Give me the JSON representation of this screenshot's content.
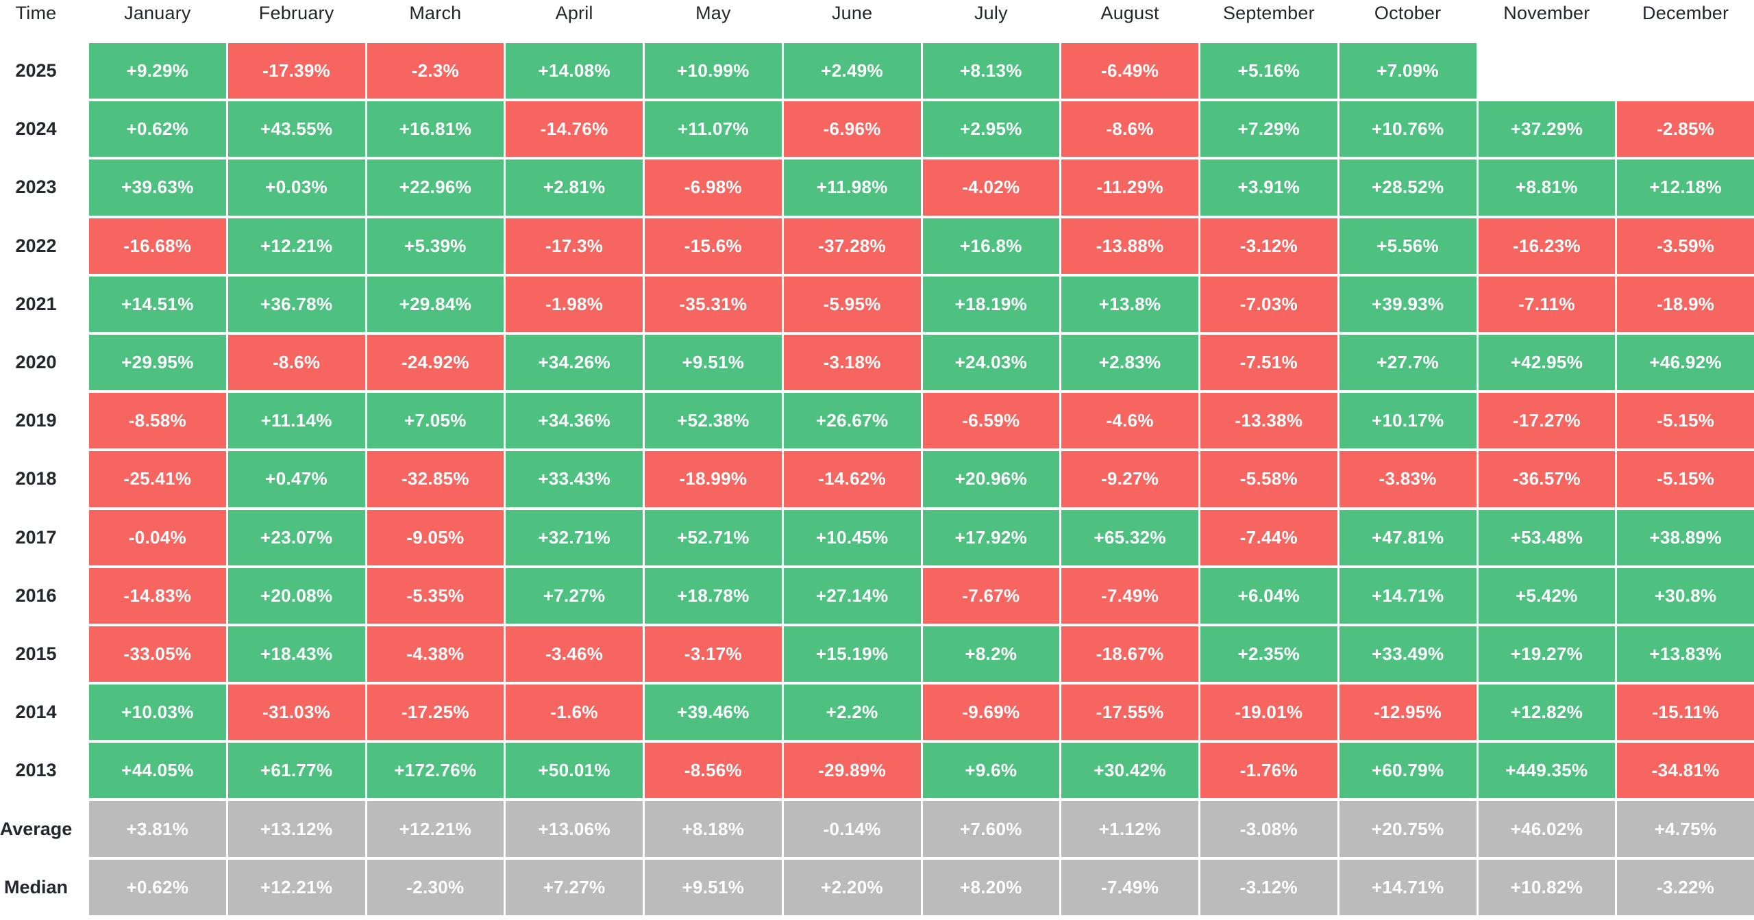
{
  "colors": {
    "positive": "#4EC181",
    "negative": "#F6655F",
    "summary": "#BBBBBB",
    "cell_text": "#FFFFFF",
    "header_text": "#23262C",
    "background": "#FFFFFF"
  },
  "table": {
    "corner_label": "Time",
    "months": [
      "January",
      "February",
      "March",
      "April",
      "May",
      "June",
      "July",
      "August",
      "September",
      "October",
      "November",
      "December"
    ],
    "rows": [
      {
        "label": "2025",
        "kind": "year",
        "values": [
          "+9.29%",
          "-17.39%",
          "-2.3%",
          "+14.08%",
          "+10.99%",
          "+2.49%",
          "+8.13%",
          "-6.49%",
          "+5.16%",
          "+7.09%",
          "",
          ""
        ]
      },
      {
        "label": "2024",
        "kind": "year",
        "values": [
          "+0.62%",
          "+43.55%",
          "+16.81%",
          "-14.76%",
          "+11.07%",
          "-6.96%",
          "+2.95%",
          "-8.6%",
          "+7.29%",
          "+10.76%",
          "+37.29%",
          "-2.85%"
        ]
      },
      {
        "label": "2023",
        "kind": "year",
        "values": [
          "+39.63%",
          "+0.03%",
          "+22.96%",
          "+2.81%",
          "-6.98%",
          "+11.98%",
          "-4.02%",
          "-11.29%",
          "+3.91%",
          "+28.52%",
          "+8.81%",
          "+12.18%"
        ]
      },
      {
        "label": "2022",
        "kind": "year",
        "values": [
          "-16.68%",
          "+12.21%",
          "+5.39%",
          "-17.3%",
          "-15.6%",
          "-37.28%",
          "+16.8%",
          "-13.88%",
          "-3.12%",
          "+5.56%",
          "-16.23%",
          "-3.59%"
        ]
      },
      {
        "label": "2021",
        "kind": "year",
        "values": [
          "+14.51%",
          "+36.78%",
          "+29.84%",
          "-1.98%",
          "-35.31%",
          "-5.95%",
          "+18.19%",
          "+13.8%",
          "-7.03%",
          "+39.93%",
          "-7.11%",
          "-18.9%"
        ]
      },
      {
        "label": "2020",
        "kind": "year",
        "values": [
          "+29.95%",
          "-8.6%",
          "-24.92%",
          "+34.26%",
          "+9.51%",
          "-3.18%",
          "+24.03%",
          "+2.83%",
          "-7.51%",
          "+27.7%",
          "+42.95%",
          "+46.92%"
        ]
      },
      {
        "label": "2019",
        "kind": "year",
        "values": [
          "-8.58%",
          "+11.14%",
          "+7.05%",
          "+34.36%",
          "+52.38%",
          "+26.67%",
          "-6.59%",
          "-4.6%",
          "-13.38%",
          "+10.17%",
          "-17.27%",
          "-5.15%"
        ]
      },
      {
        "label": "2018",
        "kind": "year",
        "values": [
          "-25.41%",
          "+0.47%",
          "-32.85%",
          "+33.43%",
          "-18.99%",
          "-14.62%",
          "+20.96%",
          "-9.27%",
          "-5.58%",
          "-3.83%",
          "-36.57%",
          "-5.15%"
        ]
      },
      {
        "label": "2017",
        "kind": "year",
        "values": [
          "-0.04%",
          "+23.07%",
          "-9.05%",
          "+32.71%",
          "+52.71%",
          "+10.45%",
          "+17.92%",
          "+65.32%",
          "-7.44%",
          "+47.81%",
          "+53.48%",
          "+38.89%"
        ]
      },
      {
        "label": "2016",
        "kind": "year",
        "values": [
          "-14.83%",
          "+20.08%",
          "-5.35%",
          "+7.27%",
          "+18.78%",
          "+27.14%",
          "-7.67%",
          "-7.49%",
          "+6.04%",
          "+14.71%",
          "+5.42%",
          "+30.8%"
        ]
      },
      {
        "label": "2015",
        "kind": "year",
        "values": [
          "-33.05%",
          "+18.43%",
          "-4.38%",
          "-3.46%",
          "-3.17%",
          "+15.19%",
          "+8.2%",
          "-18.67%",
          "+2.35%",
          "+33.49%",
          "+19.27%",
          "+13.83%"
        ]
      },
      {
        "label": "2014",
        "kind": "year",
        "values": [
          "+10.03%",
          "-31.03%",
          "-17.25%",
          "-1.6%",
          "+39.46%",
          "+2.2%",
          "-9.69%",
          "-17.55%",
          "-19.01%",
          "-12.95%",
          "+12.82%",
          "-15.11%"
        ]
      },
      {
        "label": "2013",
        "kind": "year",
        "values": [
          "+44.05%",
          "+61.77%",
          "+172.76%",
          "+50.01%",
          "-8.56%",
          "-29.89%",
          "+9.6%",
          "+30.42%",
          "-1.76%",
          "+60.79%",
          "+449.35%",
          "-34.81%"
        ]
      },
      {
        "label": "Average",
        "kind": "summary",
        "values": [
          "+3.81%",
          "+13.12%",
          "+12.21%",
          "+13.06%",
          "+8.18%",
          "-0.14%",
          "+7.60%",
          "+1.12%",
          "-3.08%",
          "+20.75%",
          "+46.02%",
          "+4.75%"
        ]
      },
      {
        "label": "Median",
        "kind": "summary",
        "values": [
          "+0.62%",
          "+12.21%",
          "-2.30%",
          "+7.27%",
          "+9.51%",
          "+2.20%",
          "+8.20%",
          "-7.49%",
          "-3.12%",
          "+14.71%",
          "+10.82%",
          "-3.22%"
        ]
      }
    ]
  },
  "chart_data": {
    "type": "heatmap",
    "columns": [
      "January",
      "February",
      "March",
      "April",
      "May",
      "June",
      "July",
      "August",
      "September",
      "October",
      "November",
      "December"
    ],
    "rows": [
      "2025",
      "2024",
      "2023",
      "2022",
      "2021",
      "2020",
      "2019",
      "2018",
      "2017",
      "2016",
      "2015",
      "2014",
      "2013",
      "Average",
      "Median"
    ],
    "values_pct": [
      [
        9.29,
        -17.39,
        -2.3,
        14.08,
        10.99,
        2.49,
        8.13,
        -6.49,
        5.16,
        7.09,
        null,
        null
      ],
      [
        0.62,
        43.55,
        16.81,
        -14.76,
        11.07,
        -6.96,
        2.95,
        -8.6,
        7.29,
        10.76,
        37.29,
        -2.85
      ],
      [
        39.63,
        0.03,
        22.96,
        2.81,
        -6.98,
        11.98,
        -4.02,
        -11.29,
        3.91,
        28.52,
        8.81,
        12.18
      ],
      [
        -16.68,
        12.21,
        5.39,
        -17.3,
        -15.6,
        -37.28,
        16.8,
        -13.88,
        -3.12,
        5.56,
        -16.23,
        -3.59
      ],
      [
        14.51,
        36.78,
        29.84,
        -1.98,
        -35.31,
        -5.95,
        18.19,
        13.8,
        -7.03,
        39.93,
        -7.11,
        -18.9
      ],
      [
        29.95,
        -8.6,
        -24.92,
        34.26,
        9.51,
        -3.18,
        24.03,
        2.83,
        -7.51,
        27.7,
        42.95,
        46.92
      ],
      [
        -8.58,
        11.14,
        7.05,
        34.36,
        52.38,
        26.67,
        -6.59,
        -4.6,
        -13.38,
        10.17,
        -17.27,
        -5.15
      ],
      [
        -25.41,
        0.47,
        -32.85,
        33.43,
        -18.99,
        -14.62,
        20.96,
        -9.27,
        -5.58,
        -3.83,
        -36.57,
        -5.15
      ],
      [
        -0.04,
        23.07,
        -9.05,
        32.71,
        52.71,
        10.45,
        17.92,
        65.32,
        -7.44,
        47.81,
        53.48,
        38.89
      ],
      [
        -14.83,
        20.08,
        -5.35,
        7.27,
        18.78,
        27.14,
        -7.67,
        -7.49,
        6.04,
        14.71,
        5.42,
        30.8
      ],
      [
        -33.05,
        18.43,
        -4.38,
        -3.46,
        -3.17,
        15.19,
        8.2,
        -18.67,
        2.35,
        33.49,
        19.27,
        13.83
      ],
      [
        10.03,
        -31.03,
        -17.25,
        -1.6,
        39.46,
        2.2,
        -9.69,
        -17.55,
        -19.01,
        -12.95,
        12.82,
        -15.11
      ],
      [
        44.05,
        61.77,
        172.76,
        50.01,
        -8.56,
        -29.89,
        9.6,
        30.42,
        -1.76,
        60.79,
        449.35,
        -34.81
      ],
      [
        3.81,
        13.12,
        12.21,
        13.06,
        8.18,
        -0.14,
        7.6,
        1.12,
        -3.08,
        20.75,
        46.02,
        4.75
      ],
      [
        0.62,
        12.21,
        -2.3,
        7.27,
        9.51,
        2.2,
        8.2,
        -7.49,
        -3.12,
        14.71,
        10.82,
        -3.22
      ]
    ],
    "legend": "cell color: green = positive month, red = negative month, gray = summary row",
    "grid": false
  }
}
